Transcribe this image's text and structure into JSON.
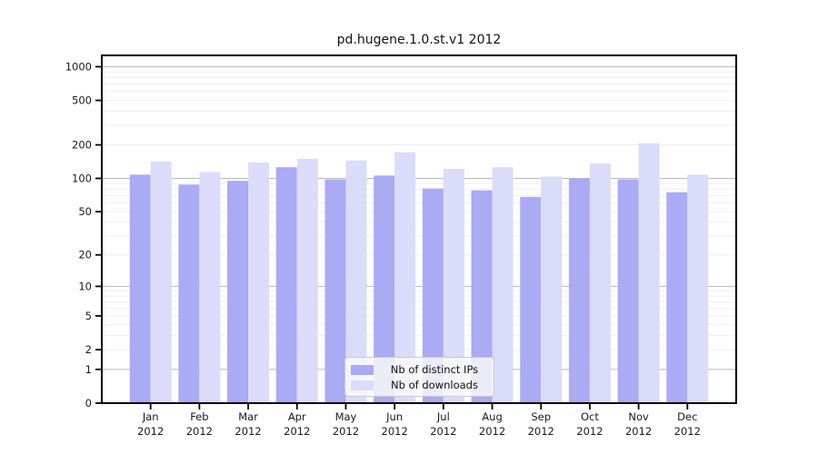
{
  "figure": {
    "title": "pd.hugene.1.0.st.v1 2012"
  },
  "chart_data": {
    "type": "bar",
    "title": "pd.hugene.1.0.st.v1 2012",
    "categories": [
      "Jan",
      "Feb",
      "Mar",
      "Apr",
      "May",
      "Jun",
      "Jul",
      "Aug",
      "Sep",
      "Oct",
      "Nov",
      "Dec"
    ],
    "x_tick_second_line": "2012",
    "series": [
      {
        "name": "Nb of distinct IPs",
        "color": "#aaaaf5",
        "values": [
          108,
          88,
          95,
          126,
          98,
          106,
          81,
          78,
          68,
          100,
          98,
          75
        ]
      },
      {
        "name": "Nb of downloads",
        "color": "#dbdbfa",
        "values": [
          142,
          114,
          139,
          150,
          145,
          172,
          122,
          126,
          104,
          136,
          207,
          108
        ]
      }
    ],
    "y_axis": {
      "scale": "log10(1+v)",
      "ticks": [
        1000,
        500,
        200,
        100,
        50,
        20,
        10,
        5,
        2,
        1,
        0
      ],
      "range": [
        0,
        1260
      ],
      "major_gridlines": [
        1,
        10,
        100,
        1000
      ]
    },
    "xlabel": "",
    "ylabel": "",
    "grid": "on",
    "legend_position": "lower center",
    "colors": {
      "major_grid": "#b8b8b8",
      "minor_grid": "#efefef",
      "spine": "#000000",
      "text": "#1a1a1a"
    }
  }
}
